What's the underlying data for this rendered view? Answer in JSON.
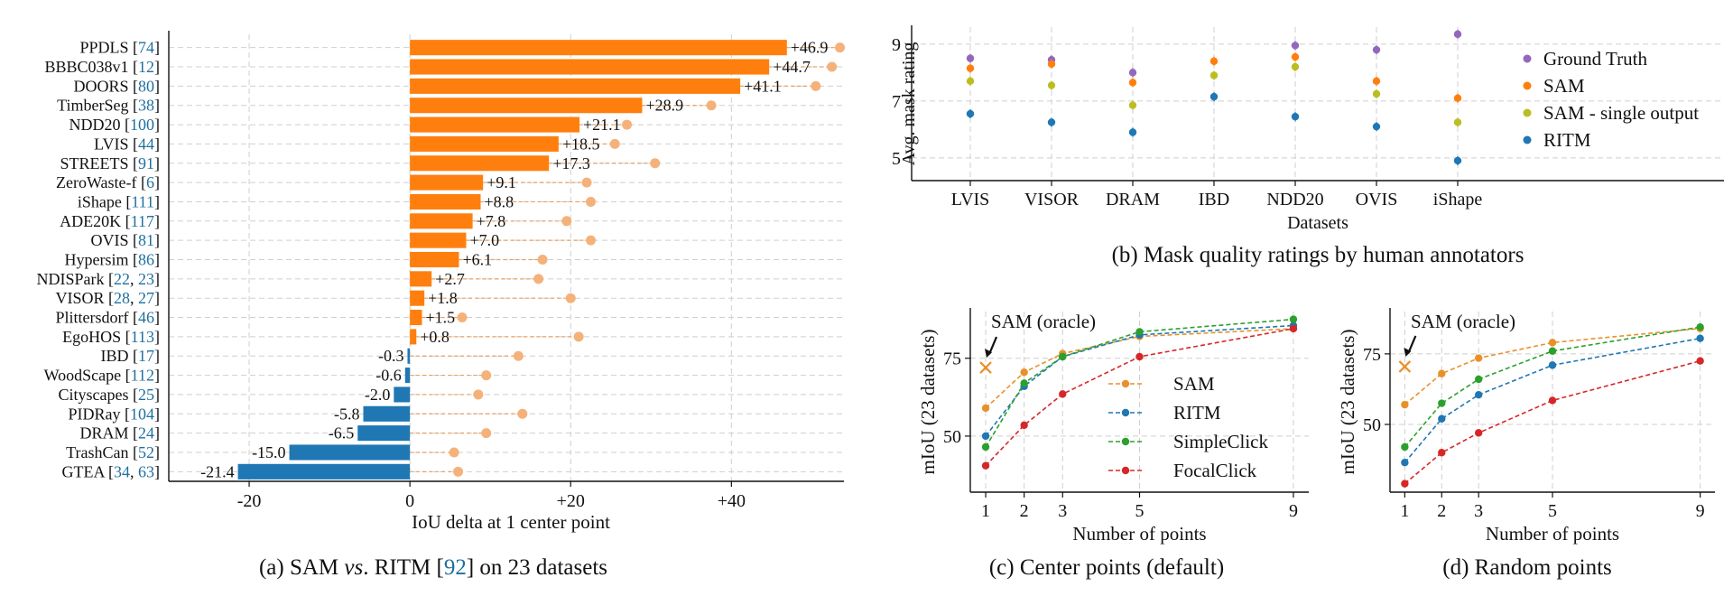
{
  "chart_data": [
    {
      "id": "a",
      "type": "bar",
      "orientation": "horizontal",
      "caption": {
        "prefix": "(a) SAM ",
        "vs": "vs",
        "middle": ". RITM [",
        "cite": "92",
        "suffix": "] on 23 datasets"
      },
      "xlabel": "IoU delta at 1 center point",
      "xlim": [
        -30,
        54
      ],
      "xticks": [
        {
          "v": -20,
          "label": "-20"
        },
        {
          "v": 0,
          "label": "0"
        },
        {
          "v": 20,
          "label": "+20"
        },
        {
          "v": 40,
          "label": "+40"
        }
      ],
      "colors": {
        "positive": "#ff7f0e",
        "negative": "#1f77b4",
        "marker": "#f4b27a"
      },
      "rows": [
        {
          "name": "PPDLS",
          "refs": [
            "74"
          ],
          "value": 46.9,
          "label": "+46.9",
          "marker": 53.5
        },
        {
          "name": "BBBC038v1",
          "refs": [
            "12"
          ],
          "value": 44.7,
          "label": "+44.7",
          "marker": 52.5
        },
        {
          "name": "DOORS",
          "refs": [
            "80"
          ],
          "value": 41.1,
          "label": "+41.1",
          "marker": 50.5
        },
        {
          "name": "TimberSeg",
          "refs": [
            "38"
          ],
          "value": 28.9,
          "label": "+28.9",
          "marker": 37.5
        },
        {
          "name": "NDD20",
          "refs": [
            "100"
          ],
          "value": 21.1,
          "label": "+21.1",
          "marker": 27.0
        },
        {
          "name": "LVIS",
          "refs": [
            "44"
          ],
          "value": 18.5,
          "label": "+18.5",
          "marker": 25.5
        },
        {
          "name": "STREETS",
          "refs": [
            "91"
          ],
          "value": 17.3,
          "label": "+17.3",
          "marker": 30.5
        },
        {
          "name": "ZeroWaste-f",
          "refs": [
            "6"
          ],
          "value": 9.1,
          "label": "+9.1",
          "marker": 22.0
        },
        {
          "name": "iShape",
          "refs": [
            "111"
          ],
          "value": 8.8,
          "label": "+8.8",
          "marker": 22.5
        },
        {
          "name": "ADE20K",
          "refs": [
            "117"
          ],
          "value": 7.8,
          "label": "+7.8",
          "marker": 19.5
        },
        {
          "name": "OVIS",
          "refs": [
            "81"
          ],
          "value": 7.0,
          "label": "+7.0",
          "marker": 22.5
        },
        {
          "name": "Hypersim",
          "refs": [
            "86"
          ],
          "value": 6.1,
          "label": "+6.1",
          "marker": 16.5
        },
        {
          "name": "NDISPark",
          "refs": [
            "22",
            "23"
          ],
          "value": 2.7,
          "label": "+2.7",
          "marker": 16.0
        },
        {
          "name": "VISOR",
          "refs": [
            "28",
            "27"
          ],
          "value": 1.8,
          "label": "+1.8",
          "marker": 20.0
        },
        {
          "name": "Plittersdorf",
          "refs": [
            "46"
          ],
          "value": 1.5,
          "label": "+1.5",
          "marker": 6.5
        },
        {
          "name": "EgoHOS",
          "refs": [
            "113"
          ],
          "value": 0.8,
          "label": "+0.8",
          "marker": 21.0
        },
        {
          "name": "IBD",
          "refs": [
            "17"
          ],
          "value": -0.3,
          "label": "-0.3",
          "marker": 13.5
        },
        {
          "name": "WoodScape",
          "refs": [
            "112"
          ],
          "value": -0.6,
          "label": "-0.6",
          "marker": 9.5
        },
        {
          "name": "Cityscapes",
          "refs": [
            "25"
          ],
          "value": -2.0,
          "label": "-2.0",
          "marker": 8.5
        },
        {
          "name": "PIDRay",
          "refs": [
            "104"
          ],
          "value": -5.8,
          "label": "-5.8",
          "marker": 14.0
        },
        {
          "name": "DRAM",
          "refs": [
            "24"
          ],
          "value": -6.5,
          "label": "-6.5",
          "marker": 9.5
        },
        {
          "name": "TrashCan",
          "refs": [
            "52"
          ],
          "value": -15.0,
          "label": "-15.0",
          "marker": 5.5
        },
        {
          "name": "GTEA",
          "refs": [
            "34",
            "63"
          ],
          "value": -21.4,
          "label": "-21.4",
          "marker": 6.0
        }
      ]
    },
    {
      "id": "b",
      "type": "scatter",
      "caption": "(b) Mask quality ratings by human annotators",
      "xlabel": "Datasets",
      "ylabel": "Avg. mask rating",
      "categories": [
        "LVIS",
        "VISOR",
        "DRAM",
        "IBD",
        "NDD20",
        "OVIS",
        "iShape"
      ],
      "ylim": [
        4.2,
        9.6
      ],
      "yticks": [
        5,
        7,
        9
      ],
      "series": [
        {
          "name": "Ground Truth",
          "color": "#9467bd",
          "values": [
            8.5,
            8.45,
            8.0,
            null,
            8.95,
            8.8,
            9.35
          ]
        },
        {
          "name": "SAM",
          "color": "#ff7f0e",
          "values": [
            8.15,
            8.3,
            7.65,
            8.4,
            8.55,
            7.7,
            7.1
          ]
        },
        {
          "name": "SAM - single output",
          "color": "#bcbd22",
          "values": [
            7.7,
            7.55,
            6.85,
            7.9,
            8.2,
            7.25,
            6.25
          ]
        },
        {
          "name": "RITM",
          "color": "#1f77b4",
          "values": [
            6.55,
            6.25,
            5.9,
            7.15,
            6.45,
            6.1,
            4.9
          ]
        }
      ]
    },
    {
      "id": "c",
      "type": "line",
      "caption": "(c) Center points (default)",
      "xlabel": "Number of points",
      "ylabel": "mIoU (23 datasets)",
      "x": [
        1,
        2,
        3,
        5,
        9
      ],
      "xlim": [
        0.6,
        9.4
      ],
      "ylim": [
        32,
        90
      ],
      "yticks": [
        50,
        75
      ],
      "oracle": {
        "label": "SAM (oracle)",
        "x": 1,
        "y": 72
      },
      "series": [
        {
          "name": "SAM",
          "color": "#e8912a",
          "values": [
            59,
            70.5,
            76.5,
            82,
            84.5
          ]
        },
        {
          "name": "RITM",
          "color": "#1f77b4",
          "values": [
            50,
            66,
            75.5,
            82.5,
            85.5
          ]
        },
        {
          "name": "SimpleClick",
          "color": "#2ca02c",
          "values": [
            46.5,
            67,
            75.5,
            83.5,
            87.5
          ]
        },
        {
          "name": "FocalClick",
          "color": "#d62728",
          "values": [
            40.5,
            53.5,
            63.5,
            75.5,
            84.5
          ]
        }
      ]
    },
    {
      "id": "d",
      "type": "line",
      "caption": "(d) Random points",
      "xlabel": "Number of points",
      "ylabel": "mIoU (23 datasets)",
      "x": [
        1,
        2,
        3,
        5,
        9
      ],
      "xlim": [
        0.6,
        9.4
      ],
      "ylim": [
        26,
        90
      ],
      "yticks": [
        50,
        75
      ],
      "oracle": {
        "label": "SAM (oracle)",
        "x": 1,
        "y": 70.5
      },
      "series": [
        {
          "name": "SAM",
          "color": "#e8912a",
          "values": [
            57,
            68,
            73.5,
            79,
            84
          ]
        },
        {
          "name": "RITM",
          "color": "#1f77b4",
          "values": [
            36.5,
            52,
            60.5,
            71,
            80.5
          ]
        },
        {
          "name": "SimpleClick",
          "color": "#2ca02c",
          "values": [
            42,
            57.5,
            66,
            76,
            84.5
          ]
        },
        {
          "name": "FocalClick",
          "color": "#d62728",
          "values": [
            29,
            40,
            47,
            58.5,
            72.5
          ]
        }
      ]
    }
  ]
}
